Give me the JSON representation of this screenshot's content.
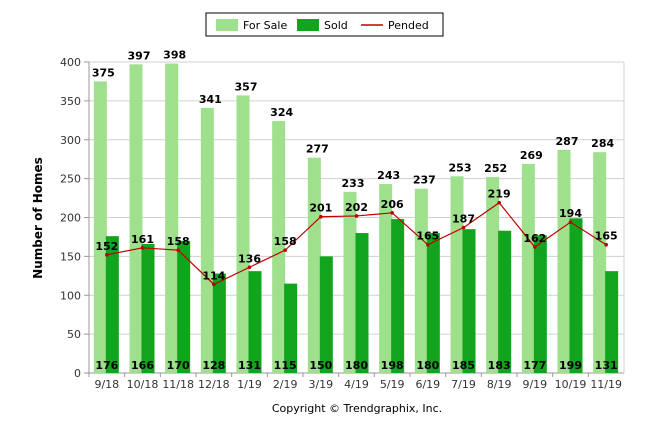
{
  "chart_data": {
    "type": "bar",
    "ylabel": "Number of Homes",
    "xlabel": "",
    "ylim": [
      0,
      400
    ],
    "yticks": [
      0,
      50,
      100,
      150,
      200,
      250,
      300,
      350,
      400
    ],
    "grid": true,
    "legend_position": "top-center",
    "categories": [
      "9/18",
      "10/18",
      "11/18",
      "12/18",
      "1/19",
      "2/19",
      "3/19",
      "4/19",
      "5/19",
      "6/19",
      "7/19",
      "8/19",
      "9/19",
      "10/19",
      "11/19"
    ],
    "series": [
      {
        "name": "For Sale",
        "type": "bar",
        "color": "#9ee08b",
        "values": [
          375,
          397,
          398,
          341,
          357,
          324,
          277,
          233,
          243,
          237,
          253,
          252,
          269,
          287,
          284
        ]
      },
      {
        "name": "Sold",
        "type": "bar",
        "color": "#10a51d",
        "values": [
          176,
          166,
          170,
          128,
          131,
          115,
          150,
          180,
          198,
          180,
          185,
          183,
          177,
          199,
          131
        ]
      },
      {
        "name": "Pended",
        "type": "line",
        "color": "#c00000",
        "values": [
          152,
          161,
          158,
          114,
          136,
          158,
          201,
          202,
          206,
          165,
          187,
          219,
          162,
          194,
          165
        ]
      }
    ]
  },
  "footer": {
    "copyright": "Copyright © Trendgraphix, Inc."
  }
}
